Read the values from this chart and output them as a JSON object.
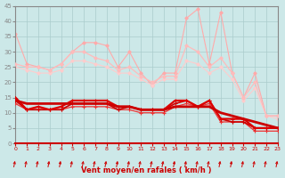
{
  "xlabel": "Vent moyen/en rafales ( km/h )",
  "xlim": [
    0,
    23
  ],
  "ylim": [
    0,
    45
  ],
  "yticks": [
    0,
    5,
    10,
    15,
    20,
    25,
    30,
    35,
    40,
    45
  ],
  "xticks": [
    0,
    1,
    2,
    3,
    4,
    5,
    6,
    7,
    8,
    9,
    10,
    11,
    12,
    13,
    14,
    15,
    16,
    17,
    18,
    19,
    20,
    21,
    22,
    23
  ],
  "background_color": "#cce8e8",
  "grid_color": "#aacccc",
  "lines": [
    {
      "y": [
        36,
        26,
        25,
        24,
        26,
        30,
        33,
        33,
        32,
        25,
        30,
        23,
        19,
        23,
        23,
        41,
        44,
        26,
        43,
        23,
        15,
        23,
        9,
        9
      ],
      "color": "#ffaaaa",
      "lw": 0.8,
      "marker": "D",
      "ms": 1.8,
      "zorder": 2
    },
    {
      "y": [
        26,
        25,
        25,
        24,
        26,
        30,
        30,
        28,
        27,
        24,
        25,
        22,
        20,
        22,
        22,
        32,
        30,
        25,
        28,
        23,
        15,
        20,
        9,
        9
      ],
      "color": "#ffbbbb",
      "lw": 0.9,
      "marker": "D",
      "ms": 1.8,
      "zorder": 3
    },
    {
      "y": [
        25,
        24,
        23,
        23,
        24,
        27,
        27,
        26,
        25,
        23,
        23,
        21,
        19,
        21,
        21,
        27,
        26,
        23,
        25,
        21,
        14,
        18,
        9,
        8
      ],
      "color": "#ffcccc",
      "lw": 0.8,
      "marker": "D",
      "ms": 1.8,
      "zorder": 2
    },
    {
      "y": [
        15,
        11,
        12,
        11,
        12,
        14,
        14,
        14,
        14,
        12,
        12,
        11,
        11,
        11,
        14,
        14,
        12,
        14,
        8,
        8,
        8,
        5,
        5,
        5
      ],
      "color": "#dd0000",
      "lw": 1.6,
      "marker": "+",
      "ms": 3.5,
      "zorder": 5
    },
    {
      "y": [
        14,
        11,
        11,
        11,
        11,
        13,
        13,
        13,
        13,
        11,
        12,
        11,
        11,
        11,
        13,
        14,
        12,
        14,
        8,
        7,
        7,
        5,
        5,
        5
      ],
      "color": "#cc0000",
      "lw": 1.2,
      "marker": "+",
      "ms": 3.0,
      "zorder": 4
    },
    {
      "y": [
        13,
        11,
        11,
        11,
        11,
        12,
        12,
        12,
        12,
        11,
        11,
        10,
        10,
        10,
        12,
        13,
        12,
        13,
        7,
        7,
        7,
        4,
        4,
        4
      ],
      "color": "#ee3333",
      "lw": 0.9,
      "marker": "+",
      "ms": 3.0,
      "zorder": 3
    },
    {
      "y": [
        14,
        13,
        13,
        13,
        13,
        13,
        13,
        13,
        13,
        12,
        12,
        11,
        11,
        11,
        12,
        12,
        12,
        12,
        10,
        9,
        8,
        7,
        6,
        5
      ],
      "color": "#cc0000",
      "lw": 2.0,
      "marker": null,
      "ms": 0,
      "zorder": 6
    }
  ],
  "arrow_color": "#cc0000",
  "tick_color_x": "#cc0000",
  "tick_color_y": "#888888",
  "spine_bottom_color": "#cc0000",
  "xlabel_color": "#cc0000",
  "xlabel_fontsize": 6,
  "xtick_fontsize": 4.5,
  "ytick_fontsize": 5
}
